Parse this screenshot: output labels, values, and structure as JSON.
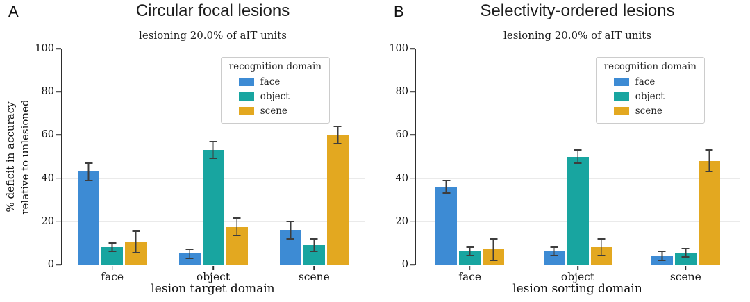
{
  "figure": {
    "background": "#ffffff"
  },
  "legend": {
    "title": "recognition domain",
    "entries": [
      {
        "label": "face",
        "color": "#3d8bd4"
      },
      {
        "label": "object",
        "color": "#18a5a0"
      },
      {
        "label": "scene",
        "color": "#e3a820"
      }
    ]
  },
  "chart_data": [
    {
      "type": "bar",
      "panel_label": "A",
      "title": "Circular focal lesions",
      "subtitle": "lesioning 20.0% of aIT units",
      "xlabel": "lesion target domain",
      "ylabel": "% deficit in accuracy\nrelative to unlesioned",
      "categories": [
        "face",
        "object",
        "scene"
      ],
      "yticks": [
        0,
        20,
        40,
        60,
        80,
        100
      ],
      "ylim": [
        0,
        100
      ],
      "grid": true,
      "legend_position": "upper right",
      "series": [
        {
          "name": "face",
          "color": "#3d8bd4",
          "values": [
            43,
            5,
            16
          ],
          "errors": [
            4,
            2,
            4
          ]
        },
        {
          "name": "object",
          "color": "#18a5a0",
          "values": [
            8,
            53,
            9
          ],
          "errors": [
            2,
            4,
            3
          ]
        },
        {
          "name": "scene",
          "color": "#e3a820",
          "values": [
            10.5,
            17.5,
            60
          ],
          "errors": [
            5,
            4,
            4
          ]
        }
      ]
    },
    {
      "type": "bar",
      "panel_label": "B",
      "title": "Selectivity-ordered lesions",
      "subtitle": "lesioning 20.0% of aIT units",
      "xlabel": "lesion sorting domain",
      "ylabel": "",
      "categories": [
        "face",
        "object",
        "scene"
      ],
      "yticks": [
        0,
        20,
        40,
        60,
        80,
        100
      ],
      "ylim": [
        0,
        100
      ],
      "grid": true,
      "legend_position": "upper right",
      "series": [
        {
          "name": "face",
          "color": "#3d8bd4",
          "values": [
            36,
            6,
            4
          ],
          "errors": [
            3,
            2,
            2
          ]
        },
        {
          "name": "object",
          "color": "#18a5a0",
          "values": [
            6,
            50,
            5.5
          ],
          "errors": [
            2,
            3,
            2
          ]
        },
        {
          "name": "scene",
          "color": "#e3a820",
          "values": [
            7,
            8,
            48
          ],
          "errors": [
            5,
            4,
            5
          ]
        }
      ]
    }
  ]
}
